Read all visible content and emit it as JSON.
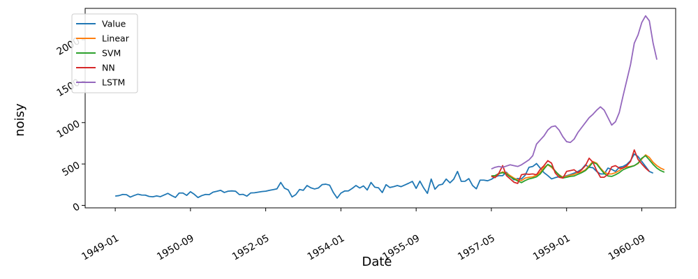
{
  "chart_data": {
    "type": "line",
    "xlabel": "Date",
    "ylabel": "noisy",
    "x_ticks": [
      "1949-01",
      "1950-09",
      "1952-05",
      "1954-01",
      "1955-09",
      "1957-05",
      "1959-01",
      "1960-09"
    ],
    "y_ticks": [
      0,
      500,
      1000,
      1500,
      2000
    ],
    "xlim": [
      "1948-05",
      "1961-06"
    ],
    "ylim": [
      -30,
      2380
    ],
    "grid": false,
    "legend_position": "top-left",
    "series": [
      {
        "name": "Value",
        "color": "#1f77b4",
        "start": "1949-01",
        "values": [
          112,
          118,
          132,
          129,
          100,
          119,
          135,
          125,
          124,
          108,
          104,
          114,
          105,
          125,
          145,
          118,
          96,
          149,
          149,
          121,
          165,
          134,
          95,
          118,
          132,
          130,
          160,
          170,
          182,
          156,
          171,
          175,
          171,
          130,
          133,
          112,
          150,
          152,
          160,
          167,
          171,
          182,
          190,
          200,
          277,
          207,
          186,
          102,
          130,
          192,
          182,
          240,
          212,
          198,
          210,
          251,
          256,
          244,
          154,
          88,
          148,
          174,
          175,
          205,
          240,
          210,
          235,
          186,
          277,
          220,
          212,
          155,
          250,
          216,
          226,
          240,
          226,
          247,
          267,
          290,
          205,
          293,
          211,
          145,
          318,
          195,
          245,
          255,
          318,
          272,
          317,
          410,
          290,
          291,
          323,
          240,
          200,
          305,
          305,
          297,
          315,
          344,
          360,
          359,
          400,
          350,
          309,
          325,
          320,
          365,
          460,
          470,
          505,
          450,
          395,
          360,
          320,
          335,
          347,
          346,
          358,
          373,
          390,
          410,
          436,
          490,
          460,
          455,
          409,
          380,
          380,
          450,
          435,
          410,
          460,
          470,
          495,
          540,
          620,
          590,
          530,
          470,
          410,
          390
        ]
      },
      {
        "name": "Linear",
        "color": "#ff7f0e",
        "start": "1957-05",
        "values": [
          360,
          340,
          380,
          405,
          390,
          360,
          330,
          310,
          300,
          330,
          340,
          345,
          365,
          400,
          460,
          490,
          460,
          410,
          370,
          340,
          350,
          365,
          375,
          395,
          405,
          430,
          480,
          530,
          510,
          450,
          400,
          380,
          380,
          395,
          420,
          455,
          465,
          470,
          480,
          505,
          560,
          610,
          580,
          520,
          480,
          450,
          430
        ]
      },
      {
        "name": "SVM",
        "color": "#2ca02c",
        "start": "1957-05",
        "values": [
          355,
          360,
          385,
          395,
          380,
          345,
          320,
          295,
          275,
          300,
          320,
          330,
          345,
          380,
          440,
          495,
          470,
          415,
          365,
          330,
          340,
          350,
          355,
          375,
          395,
          420,
          465,
          520,
          500,
          440,
          385,
          355,
          350,
          370,
          395,
          430,
          450,
          465,
          480,
          510,
          570,
          600,
          550,
          495,
          450,
          420,
          400
        ]
      },
      {
        "name": "NN",
        "color": "#d62728",
        "start": "1957-05",
        "values": [
          350,
          335,
          390,
          480,
          360,
          320,
          280,
          265,
          370,
          380,
          375,
          380,
          370,
          435,
          480,
          540,
          510,
          390,
          340,
          330,
          410,
          420,
          430,
          395,
          430,
          480,
          570,
          520,
          420,
          340,
          340,
          375,
          465,
          480,
          450,
          450,
          480,
          530,
          670,
          555,
          500,
          450,
          410
        ]
      },
      {
        "name": "LSTM",
        "color": "#9467bd",
        "start": "1957-05",
        "values": [
          440,
          460,
          470,
          460,
          475,
          490,
          480,
          470,
          490,
          520,
          550,
          600,
          740,
          790,
          840,
          910,
          950,
          960,
          910,
          830,
          770,
          760,
          800,
          880,
          940,
          1000,
          1060,
          1100,
          1150,
          1190,
          1150,
          1060,
          970,
          1010,
          1120,
          1320,
          1510,
          1700,
          1960,
          2060,
          2210,
          2290,
          2230,
          1960,
          1760
        ]
      }
    ]
  }
}
